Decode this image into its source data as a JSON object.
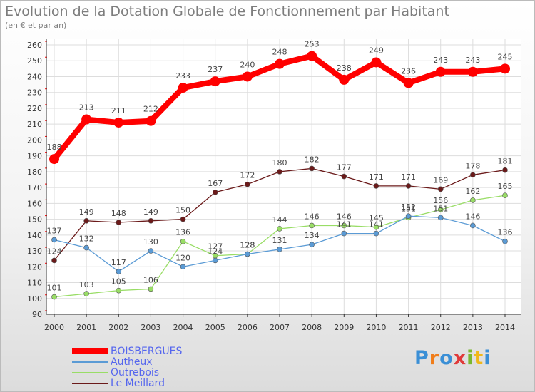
{
  "title": "Evolution de la Dotation Globale de Fonctionnement par Habitant",
  "subtitle": "(en € et par an)",
  "logo": {
    "text": "Proxiti",
    "letters": [
      "P",
      "r",
      "o",
      "x",
      "i",
      "t",
      "i"
    ],
    "colors": [
      "#3a8fd6",
      "#f07d1a",
      "#3a8fd6",
      "#e03a3a",
      "#7ab830",
      "#f0b81a",
      "#3a8fd6"
    ]
  },
  "chart_data": {
    "type": "line",
    "x": [
      "2000",
      "2001",
      "2002",
      "2003",
      "2004",
      "2005",
      "2006",
      "2007",
      "2008",
      "2009",
      "2010",
      "2011",
      "2012",
      "2013",
      "2014"
    ],
    "yticks": [
      "90",
      "100",
      "110",
      "120",
      "130",
      "140",
      "150",
      "160",
      "170",
      "180",
      "190",
      "200",
      "210",
      "220",
      "230",
      "240",
      "250",
      "260"
    ],
    "ylim": [
      90,
      260
    ],
    "grid": true,
    "legend_position": "bottom-left",
    "series": [
      {
        "name": "BOISBERGUES",
        "color": "#ff0000",
        "values": [
          188,
          213,
          211,
          212,
          233,
          237,
          240,
          248,
          253,
          238,
          249,
          236,
          243,
          243,
          245
        ]
      },
      {
        "name": "Autheux",
        "color": "#5b9bd5",
        "values": [
          137,
          132,
          117,
          130,
          120,
          124,
          128,
          131,
          134,
          141,
          141,
          152,
          151,
          146,
          136
        ]
      },
      {
        "name": "Outrebois",
        "color": "#99dd66",
        "values": [
          101,
          103,
          105,
          106,
          136,
          127,
          128,
          144,
          146,
          146,
          145,
          151,
          156,
          162,
          165
        ]
      },
      {
        "name": "Le Meillard",
        "color": "#6b1a1a",
        "values": [
          124,
          149,
          148,
          149,
          150,
          167,
          172,
          180,
          182,
          177,
          171,
          171,
          169,
          178,
          181
        ]
      }
    ]
  }
}
